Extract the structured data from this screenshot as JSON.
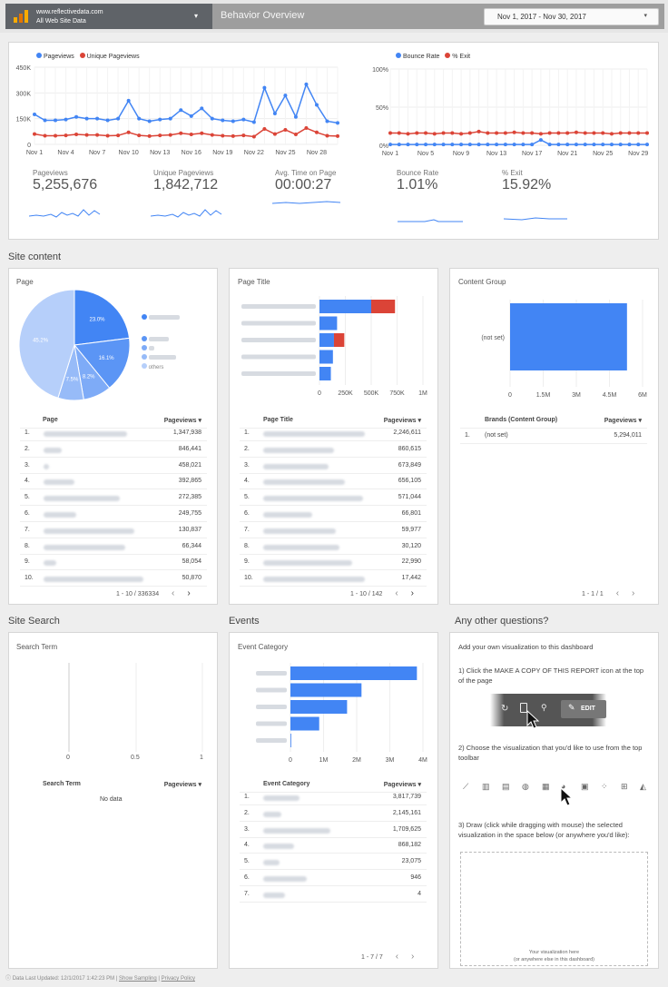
{
  "header": {
    "account_line1": "www.reflectivedata.com",
    "account_line2": "All Web Site Data",
    "report_title": "Behavior Overview",
    "date_range": "Nov 1, 2017 - Nov 30, 2017",
    "dropdown_glyph": "▾"
  },
  "overview": {
    "left_chart": {
      "legend": [
        "Pageviews",
        "Unique Pageviews"
      ],
      "y_ticks": [
        "450K",
        "300K",
        "150K",
        "0"
      ],
      "x_ticks": [
        "Nov 1",
        "Nov 4",
        "Nov 7",
        "Nov 10",
        "Nov 13",
        "Nov 16",
        "Nov 19",
        "Nov 22",
        "Nov 25",
        "Nov 28"
      ]
    },
    "right_chart": {
      "legend": [
        "Bounce Rate",
        "% Exit"
      ],
      "y_ticks": [
        "100%",
        "50%",
        "0%"
      ],
      "x_ticks": [
        "Nov 1",
        "Nov 5",
        "Nov 9",
        "Nov 13",
        "Nov 17",
        "Nov 21",
        "Nov 25",
        "Nov 29"
      ]
    },
    "metrics": [
      {
        "label": "Pageviews",
        "value": "5,255,676"
      },
      {
        "label": "Unique Pageviews",
        "value": "1,842,712"
      },
      {
        "label": "Avg. Time on Page",
        "value": "00:00:27"
      },
      {
        "label": "Bounce Rate",
        "value": "1.01%"
      },
      {
        "label": "% Exit",
        "value": "15.92%"
      }
    ]
  },
  "chart_data": [
    {
      "type": "line",
      "x": [
        "Nov 1",
        "Nov 2",
        "Nov 3",
        "Nov 4",
        "Nov 5",
        "Nov 6",
        "Nov 7",
        "Nov 8",
        "Nov 9",
        "Nov 10",
        "Nov 11",
        "Nov 12",
        "Nov 13",
        "Nov 14",
        "Nov 15",
        "Nov 16",
        "Nov 17",
        "Nov 18",
        "Nov 19",
        "Nov 20",
        "Nov 21",
        "Nov 22",
        "Nov 23",
        "Nov 24",
        "Nov 25",
        "Nov 26",
        "Nov 27",
        "Nov 28",
        "Nov 29",
        "Nov 30"
      ],
      "series": [
        {
          "name": "Pageviews",
          "values": [
            175000,
            140000,
            140000,
            145000,
            160000,
            150000,
            150000,
            140000,
            150000,
            255000,
            150000,
            135000,
            145000,
            150000,
            200000,
            165000,
            210000,
            150000,
            140000,
            135000,
            145000,
            130000,
            330000,
            180000,
            285000,
            160000,
            350000,
            230000,
            135000,
            125000
          ]
        },
        {
          "name": "Unique Pageviews",
          "values": [
            60000,
            50000,
            50000,
            52000,
            58000,
            55000,
            55000,
            50000,
            52000,
            70000,
            52000,
            48000,
            52000,
            55000,
            65000,
            58000,
            65000,
            55000,
            50000,
            48000,
            52000,
            45000,
            90000,
            60000,
            85000,
            58000,
            95000,
            70000,
            50000,
            48000
          ]
        }
      ],
      "ylim": [
        0,
        450000
      ]
    },
    {
      "type": "line",
      "x": [
        "Nov 1",
        "Nov 2",
        "Nov 3",
        "Nov 4",
        "Nov 5",
        "Nov 6",
        "Nov 7",
        "Nov 8",
        "Nov 9",
        "Nov 10",
        "Nov 11",
        "Nov 12",
        "Nov 13",
        "Nov 14",
        "Nov 15",
        "Nov 16",
        "Nov 17",
        "Nov 18",
        "Nov 19",
        "Nov 20",
        "Nov 21",
        "Nov 22",
        "Nov 23",
        "Nov 24",
        "Nov 25",
        "Nov 26",
        "Nov 27",
        "Nov 28",
        "Nov 29",
        "Nov 30"
      ],
      "series": [
        {
          "name": "Bounce Rate",
          "values": [
            1,
            1,
            1,
            1,
            1,
            1,
            1,
            1,
            1,
            1,
            1,
            1,
            1,
            1,
            1,
            1,
            1,
            7,
            1,
            1,
            1,
            1,
            1,
            1,
            1,
            1,
            1,
            1,
            1,
            1
          ]
        },
        {
          "name": "% Exit",
          "values": [
            16,
            16,
            15,
            16,
            16,
            15,
            16,
            16,
            15,
            16,
            18,
            16,
            16,
            16,
            17,
            16,
            16,
            15,
            16,
            16,
            16,
            17,
            16,
            16,
            16,
            15,
            16,
            16,
            16,
            16
          ]
        }
      ],
      "ylim": [
        0,
        100
      ]
    },
    {
      "type": "pie",
      "labels": [
        "",
        "",
        "",
        "",
        "others"
      ],
      "values": [
        23.0,
        16.1,
        8.2,
        7.5,
        45.2
      ]
    },
    {
      "type": "bar",
      "orientation": "horizontal",
      "series": [
        {
          "name": "",
          "values": [
            500000,
            170000,
            140000,
            130000,
            110000
          ]
        },
        {
          "name": "",
          "values": [
            230000,
            0,
            100000,
            0,
            0
          ]
        }
      ],
      "xlim": [
        0,
        1000000
      ],
      "x_ticks": [
        "0",
        "250K",
        "500K",
        "750K",
        "1M"
      ]
    },
    {
      "type": "bar",
      "orientation": "horizontal",
      "categories": [
        "(not set)"
      ],
      "values": [
        5294011
      ],
      "xlim": [
        0,
        6000000
      ],
      "x_ticks": [
        "0",
        "1.5M",
        "3M",
        "4.5M",
        "6M"
      ]
    },
    {
      "type": "bar",
      "orientation": "horizontal",
      "values": [
        3817739,
        2145161,
        1709625,
        868182,
        23075
      ],
      "xlim": [
        0,
        4000000
      ],
      "x_ticks": [
        "0",
        "1M",
        "2M",
        "3M",
        "4M"
      ]
    }
  ],
  "site_content": {
    "title": "Site content",
    "page_card": {
      "title": "Page",
      "others_label": "others",
      "pct_labels": [
        "23.0%",
        "16.1%",
        "8.2%",
        "7.5%",
        "45.2%"
      ],
      "col_page": "Page",
      "col_views": "Pageviews ▾",
      "values": [
        "1,347,938",
        "846,441",
        "458,021",
        "392,865",
        "272,385",
        "249,755",
        "130,837",
        "66,344",
        "58,054",
        "50,870"
      ],
      "pager": "1 - 10 / 336334"
    },
    "title_card": {
      "title": "Page Title",
      "x_ticks": [
        "0",
        "250K",
        "500K",
        "750K",
        "1M"
      ],
      "col_title": "Page Title",
      "col_views": "Pageviews ▾",
      "values": [
        "2,246,611",
        "860,615",
        "673,849",
        "656,105",
        "571,044",
        "66,801",
        "59,977",
        "30,120",
        "22,990",
        "17,442"
      ],
      "pager": "1 - 10 / 142"
    },
    "group_card": {
      "title": "Content Group",
      "bar_label": "(not set)",
      "x_ticks": [
        "0",
        "1.5M",
        "3M",
        "4.5M",
        "6M"
      ],
      "col_group": "Brands (Content Group)",
      "col_views": "Pageviews ▾",
      "row_label": "(not set)",
      "row_value": "5,294,011",
      "pager": "1 - 1 / 1"
    }
  },
  "site_search": {
    "title": "Site Search",
    "card_title": "Search Term",
    "x_ticks": [
      "0",
      "0.5",
      "1"
    ],
    "col_term": "Search Term",
    "col_views": "Pageviews ▾",
    "no_data": "No data"
  },
  "events": {
    "title": "Events",
    "card_title": "Event Category",
    "x_ticks": [
      "0",
      "1M",
      "2M",
      "3M",
      "4M"
    ],
    "col_cat": "Event Category",
    "col_views": "Pageviews ▾",
    "values": [
      "3,817,739",
      "2,145,161",
      "1,709,625",
      "868,182",
      "23,075",
      "946",
      "4"
    ],
    "pager": "1 - 7 / 7"
  },
  "questions": {
    "title": "Any other questions?",
    "intro": "Add your own visualization to this dashboard",
    "step1": "1) Click the MAKE A COPY OF THIS REPORT icon at the top of the page",
    "edit_label": "EDIT",
    "step2": "2) Choose the visualization that you'd like to use from the top toolbar",
    "step3": "3) Draw (click while dragging with mouse) the selected visualization in the space below (or anywhere you'd like):",
    "drop_line1": "Your visualization here",
    "drop_line2": "(or anywhere else in this dashboard)"
  },
  "footer": {
    "updated": "Data Last Updated: 12/1/2017 1:42:23 PM",
    "sampling": "Show Sampling",
    "privacy": "Privacy Policy"
  },
  "colors": {
    "blue": "#4285f4",
    "red": "#db4437",
    "pie": [
      "#4285f4",
      "#5b95f5",
      "#7eabf7",
      "#97bbf8",
      "#b6cffa"
    ]
  }
}
